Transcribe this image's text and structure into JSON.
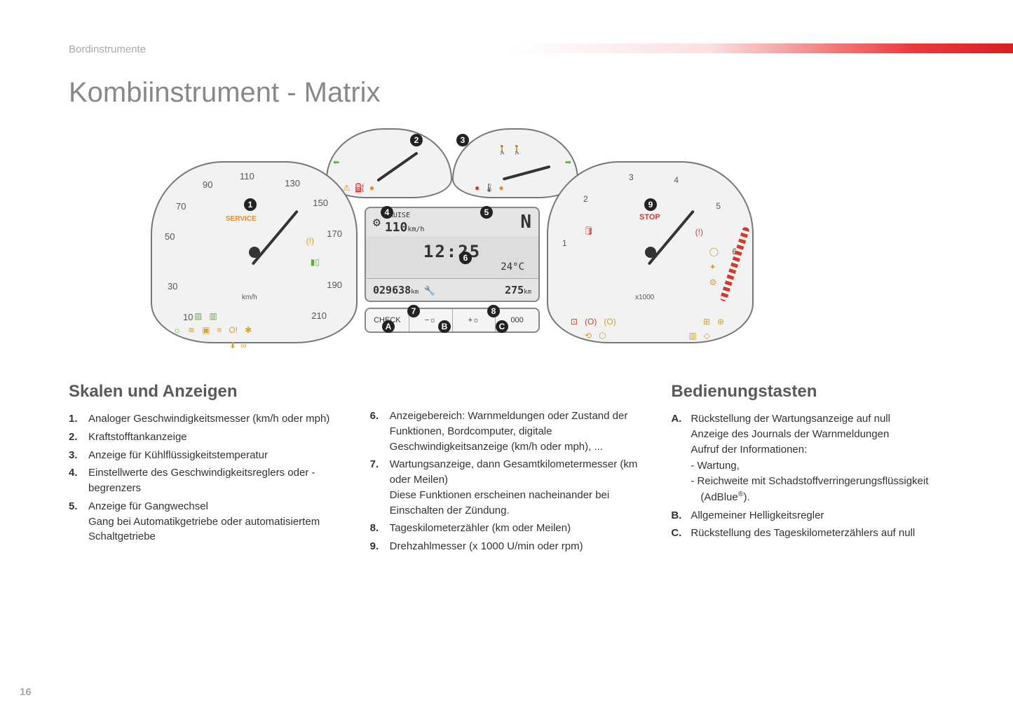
{
  "header": {
    "section_label": "Bordinstrumente"
  },
  "title": "Kombiinstrument - Matrix",
  "page_number": "16",
  "figure": {
    "speedo": {
      "ticks": [
        "10",
        "30",
        "50",
        "70",
        "90",
        "110",
        "130",
        "150",
        "170",
        "190",
        "210"
      ],
      "unit": "km/h",
      "service_label": "SERVICE"
    },
    "tacho": {
      "ticks": [
        "1",
        "2",
        "3",
        "4",
        "5",
        "6"
      ],
      "unit": "x1000",
      "stop_label": "STOP"
    },
    "lcd": {
      "cruise_label": "CRUISE",
      "cruise_value": "110",
      "cruise_unit": "km/h",
      "gear": "N",
      "clock": "12:25",
      "temp": "24°C",
      "odo": "029638",
      "odo_unit": "km",
      "trip": "275",
      "trip_unit": "km"
    },
    "buttons": {
      "a": "CHECK",
      "b": "−☼",
      "c": "+☼",
      "d": "000"
    },
    "callouts": {
      "1": "1",
      "2": "2",
      "3": "3",
      "4": "4",
      "5": "5",
      "6": "6",
      "7": "7",
      "8": "8",
      "9": "9",
      "A": "A",
      "B": "B",
      "C": "C"
    }
  },
  "columns": {
    "left_title": "Skalen und Anzeigen",
    "right_title": "Bedienungstasten",
    "items_1_5": [
      {
        "n": "1.",
        "t": "Analoger Geschwindigkeitsmesser (km/h oder mph)"
      },
      {
        "n": "2.",
        "t": "Kraftstofftankanzeige"
      },
      {
        "n": "3.",
        "t": "Anzeige für Kühlflüssigkeitstemperatur"
      },
      {
        "n": "4.",
        "t": "Einstellwerte des Geschwindigkeitsreglers oder -begrenzers"
      },
      {
        "n": "5.",
        "t": "Anzeige für Gangwechsel\nGang bei Automatikgetriebe oder automatisiertem Schaltgetriebe"
      }
    ],
    "items_6_9": [
      {
        "n": "6.",
        "t": "Anzeigebereich: Warnmeldungen oder Zustand der Funktionen, Bordcomputer, digitale Geschwindigkeitsanzeige (km/h oder mph), ..."
      },
      {
        "n": "7.",
        "t": "Wartungsanzeige, dann Gesamtkilometermesser (km oder Meilen)\nDiese Funktionen erscheinen nacheinander bei Einschalten der Zündung."
      },
      {
        "n": "8.",
        "t": "Tageskilometerzähler (km oder Meilen)"
      },
      {
        "n": "9.",
        "t": "Drehzahlmesser (x 1000 U/min oder rpm)"
      }
    ],
    "items_abc": [
      {
        "n": "A.",
        "t": "Rückstellung der Wartungsanzeige auf null\nAnzeige des Journals der Warnmeldungen\nAufruf der Informationen:",
        "sub": [
          "Wartung,",
          "Reichweite mit Schadstoffverringerungsflüssigkeit (AdBlue®)."
        ]
      },
      {
        "n": "B.",
        "t": "Allgemeiner Helligkeitsregler"
      },
      {
        "n": "C.",
        "t": "Rückstellung des Tageskilometerzählers auf null"
      }
    ]
  },
  "colors": {
    "text": "#333333",
    "muted": "#a8a8a8",
    "title_grey": "#888888",
    "gradient_red": "#d62020",
    "orange": "#e58a2c",
    "warn_red": "#d43a2a",
    "green": "#6aa84f",
    "amber": "#d4a12a",
    "panel_fill": "#f2f2f2",
    "panel_stroke": "#777777",
    "lcd_fill": "#e5e5e5"
  }
}
